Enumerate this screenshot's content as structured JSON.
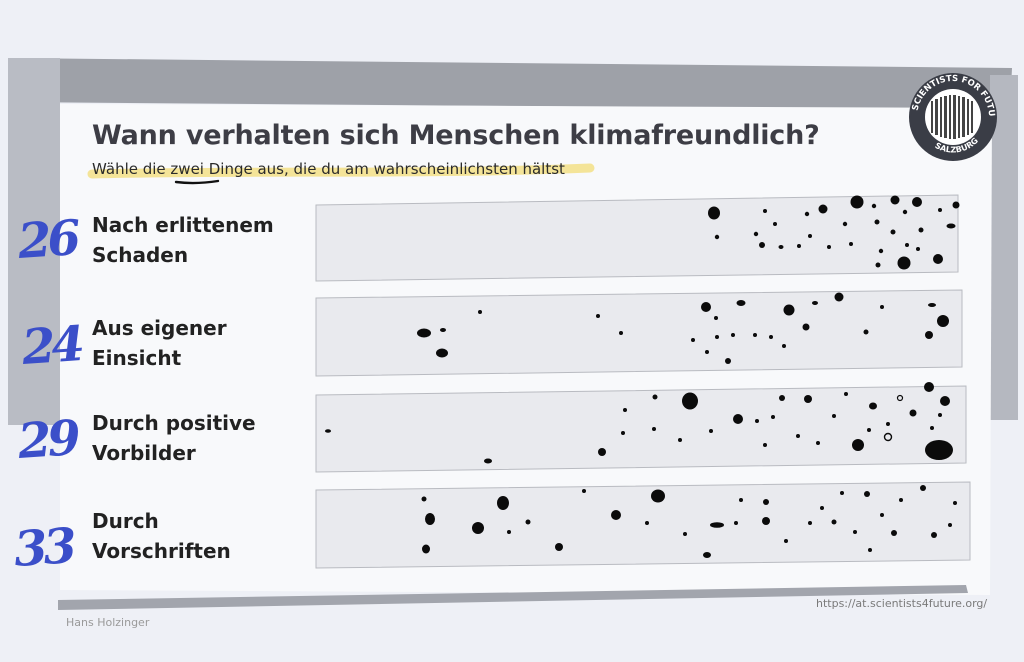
{
  "poster": {
    "title": "Wann verhalten sich Menschen klimafreundlich?",
    "subtitle_parts": [
      "Wähle die ",
      "zwei",
      " Dinge aus, die du am wahrscheinlichsten hältst"
    ],
    "logo_text_top": "SCIENTISTS FOR FUTURE",
    "logo_text_bottom": "SALZBURG",
    "author": "Hans Holzinger",
    "url": "https://at.scientists4future.org/"
  },
  "rows": [
    {
      "line1": "Nach erlittenem",
      "line2": "Schaden",
      "count": "26"
    },
    {
      "line1": "Aus eigener",
      "line2": "Einsicht",
      "count": "24"
    },
    {
      "line1": "Durch positive",
      "line2": "Vorbilder",
      "count": "29"
    },
    {
      "line1": "Durch",
      "line2": "Vorschriften",
      "count": "33"
    }
  ],
  "colors": {
    "ink_blue": "#3b4fc9",
    "highlighter": "#f3dc77",
    "dots": "#0b0b0b",
    "title": "#3d3d45"
  }
}
